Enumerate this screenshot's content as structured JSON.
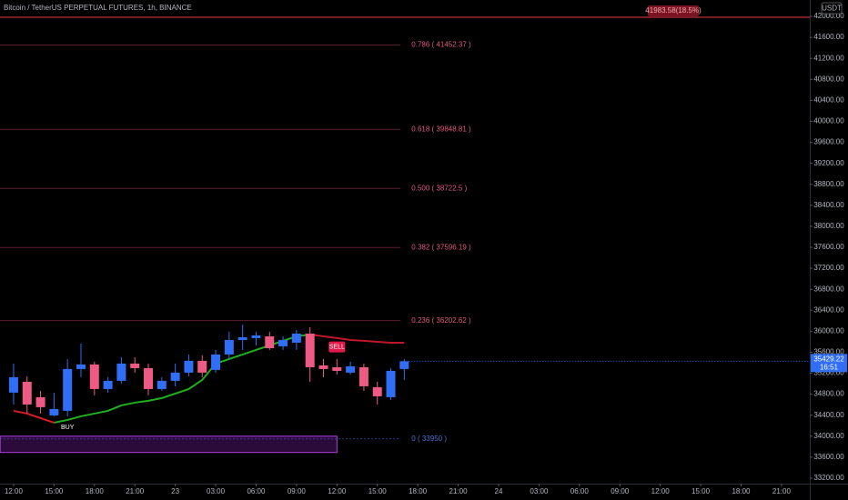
{
  "chart_data": {
    "type": "candlestick",
    "title": "Bitcoin / TetherUS PERPETUAL FUTURES, 1h, BINANCE",
    "currency": "USDT",
    "x": [
      0,
      1,
      2,
      3,
      4,
      5,
      6,
      7,
      8,
      9,
      10,
      11,
      12,
      13,
      14,
      15,
      16,
      17,
      18,
      19,
      20,
      21,
      22,
      23,
      24,
      25,
      26,
      27,
      28,
      29
    ],
    "open": [
      34830,
      35037,
      34743,
      34396,
      34483,
      35280,
      35367,
      34899,
      35055,
      35384,
      35297,
      34899,
      35055,
      35211,
      35436,
      35263,
      35557,
      35834,
      35869,
      35903,
      35713,
      35782,
      35955,
      35349,
      35314,
      35211,
      35314,
      34934,
      34743,
      35280
    ],
    "high": [
      35384,
      35141,
      34864,
      34830,
      35470,
      35765,
      35418,
      35124,
      35505,
      35505,
      35384,
      35124,
      35384,
      35557,
      35540,
      35644,
      35990,
      36128,
      35990,
      35990,
      35903,
      36024,
      36076,
      35470,
      35470,
      35418,
      35384,
      35037,
      35297,
      35470
    ],
    "low": [
      34604,
      34431,
      34431,
      34379,
      34379,
      35124,
      34778,
      34830,
      35003,
      35211,
      34778,
      34864,
      34951,
      35141,
      35124,
      35211,
      35470,
      35644,
      35730,
      35644,
      35644,
      35644,
      35037,
      35124,
      35176,
      35176,
      34864,
      34604,
      34691,
      35072
    ],
    "close": [
      35124,
      34604,
      34553,
      34518,
      35280,
      35367,
      34899,
      35055,
      35384,
      35297,
      34899,
      35055,
      35211,
      35436,
      35211,
      35557,
      35834,
      35886,
      35921,
      35678,
      35834,
      35955,
      35314,
      35280,
      35245,
      35332,
      34951,
      34760,
      35245,
      35429.22
    ],
    "up_color": "#2f6ef5",
    "down_color": "#ef5a84",
    "lines": [
      {
        "color": "#e0192b",
        "values": [
          34483,
          34431,
          34344,
          34258,
          null,
          null,
          null,
          null,
          null,
          null,
          null,
          null,
          null,
          null,
          null,
          null,
          null,
          null,
          null,
          null,
          null,
          null,
          null,
          null,
          null,
          null,
          null,
          null,
          null,
          null
        ]
      },
      {
        "color": "#1fb01f",
        "values": [
          null,
          null,
          null,
          34258,
          34310,
          34379,
          34431,
          34483,
          34587,
          34639,
          34674,
          34726,
          34812,
          34899,
          35072,
          35384,
          35470,
          35557,
          35644,
          35730,
          35817,
          35903,
          35938,
          null,
          null,
          null,
          null,
          null,
          null,
          null
        ]
      },
      {
        "color": "#c0162a",
        "values": [
          null,
          null,
          null,
          null,
          null,
          null,
          null,
          null,
          null,
          null,
          null,
          null,
          null,
          null,
          null,
          null,
          null,
          null,
          null,
          null,
          null,
          null,
          35938,
          35903,
          35869,
          35834,
          35817,
          35799,
          35782,
          35782
        ]
      }
    ],
    "fib_levels": [
      {
        "price": 41452.37,
        "label": "0.786 ( 41452.37 )"
      },
      {
        "price": 39848.81,
        "label": "0.618 ( 39848.81 )"
      },
      {
        "price": 38722.5,
        "label": "0.500 ( 38722.5 )"
      },
      {
        "price": 37596.19,
        "label": "0.382 ( 37596.19 )"
      },
      {
        "price": 36202.62,
        "label": "0.236 ( 36202.62 )"
      },
      {
        "price": 33950,
        "label": "0 ( 33950 )"
      }
    ],
    "target": {
      "price": 41983.58,
      "label": "41983.58(18.5%)"
    },
    "box": {
      "x0": -1,
      "x1": 24,
      "top": 34000,
      "bottom": 33690
    },
    "signals": [
      {
        "text": "BUY",
        "x": 4,
        "price": 34170
      },
      {
        "text": "SELL",
        "x": 24,
        "price": 35700
      }
    ],
    "last_price": {
      "value": 35429.22,
      "label": "35429.22",
      "countdown": "16:51"
    },
    "xlim": [
      -1.01,
      59.1
    ],
    "xticks": [
      {
        "value": 0,
        "label": "12:00"
      },
      {
        "value": 3,
        "label": "15:00"
      },
      {
        "value": 6,
        "label": "18:00"
      },
      {
        "value": 9,
        "label": "21:00"
      },
      {
        "value": 12,
        "label": "23"
      },
      {
        "value": 15,
        "label": "03:00"
      },
      {
        "value": 18,
        "label": "06:00"
      },
      {
        "value": 21,
        "label": "09:00"
      },
      {
        "value": 24,
        "label": "12:00"
      },
      {
        "value": 27,
        "label": "15:00"
      },
      {
        "value": 30,
        "label": "18:00"
      },
      {
        "value": 33,
        "label": "21:00"
      },
      {
        "value": 36,
        "label": "24"
      },
      {
        "value": 39,
        "label": "03:00"
      },
      {
        "value": 42,
        "label": "06:00"
      },
      {
        "value": 45,
        "label": "09:00"
      },
      {
        "value": 48,
        "label": "12:00"
      },
      {
        "value": 51,
        "label": "15:00"
      },
      {
        "value": 54,
        "label": "18:00"
      },
      {
        "value": 57,
        "label": "21:00"
      }
    ],
    "ylim": [
      33096,
      42312
    ],
    "yticks": [
      {
        "value": 33200,
        "label": "33200.00"
      },
      {
        "value": 33600,
        "label": "33600.00"
      },
      {
        "value": 34000,
        "label": "34000.00"
      },
      {
        "value": 34400,
        "label": "34400.00"
      },
      {
        "value": 34800,
        "label": "34800.00"
      },
      {
        "value": 35200,
        "label": "35200.00"
      },
      {
        "value": 35600,
        "label": "35600.00"
      },
      {
        "value": 36000,
        "label": "36000.00"
      },
      {
        "value": 36400,
        "label": "36400.00"
      },
      {
        "value": 36800,
        "label": "36800.00"
      },
      {
        "value": 37200,
        "label": "37200.00"
      },
      {
        "value": 37600,
        "label": "37600.00"
      },
      {
        "value": 38000,
        "label": "38000.00"
      },
      {
        "value": 38400,
        "label": "38400.00"
      },
      {
        "value": 38800,
        "label": "38800.00"
      },
      {
        "value": 39200,
        "label": "39200.00"
      },
      {
        "value": 39600,
        "label": "39600.00"
      },
      {
        "value": 40000,
        "label": "40000.00"
      },
      {
        "value": 40400,
        "label": "40400.00"
      },
      {
        "value": 40800,
        "label": "40800.00"
      },
      {
        "value": 41200,
        "label": "41200.00"
      },
      {
        "value": 41600,
        "label": "41600.00"
      },
      {
        "value": 42000,
        "label": "42000.00"
      }
    ],
    "grid": false
  }
}
